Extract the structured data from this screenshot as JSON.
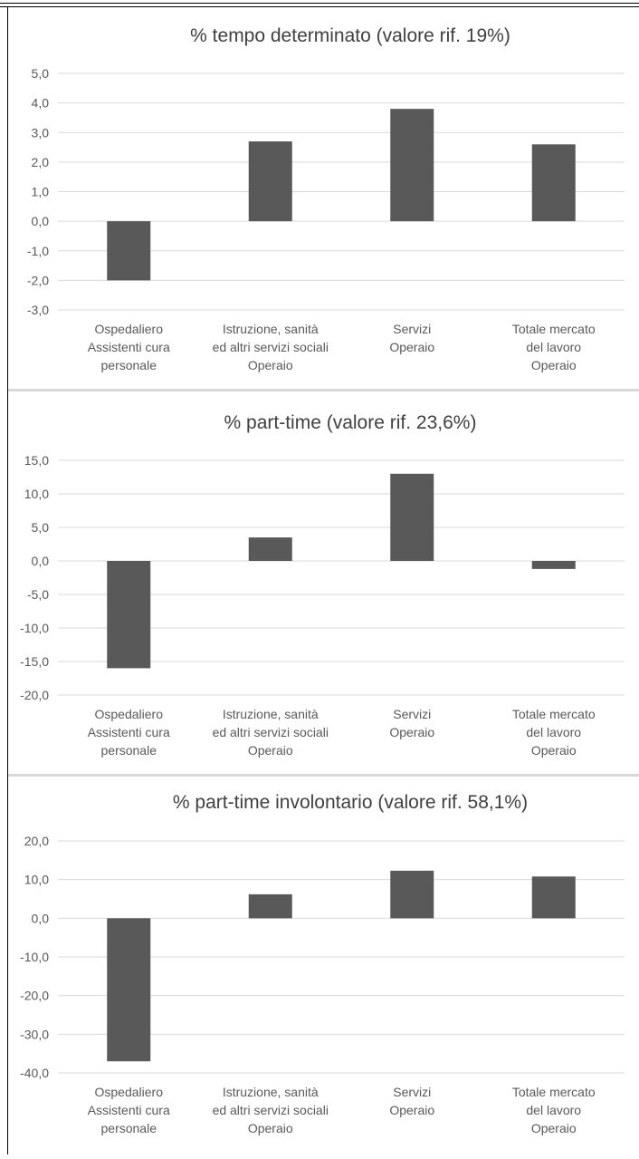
{
  "chart_data": [
    {
      "type": "bar",
      "title": "% tempo determinato (valore rif. 19%)",
      "categories": [
        [
          "Ospedaliero",
          "Assistenti cura",
          "personale"
        ],
        [
          "Istruzione, sanità",
          "ed altri servizi sociali",
          "Operaio"
        ],
        [
          "Servizi",
          "Operaio"
        ],
        [
          "Totale mercato",
          "del lavoro",
          "Operaio"
        ]
      ],
      "values": [
        -2.0,
        2.7,
        3.8,
        2.6
      ],
      "ylim": [
        -3.0,
        5.0
      ],
      "yticks": [
        "5,0",
        "4,0",
        "3,0",
        "2,0",
        "1,0",
        "0,0",
        "-1,0",
        "-2,0",
        "-3,0"
      ],
      "grid": true,
      "xlabel": "",
      "ylabel": ""
    },
    {
      "type": "bar",
      "title": "% part-time (valore rif. 23,6%)",
      "categories": [
        [
          "Ospedaliero",
          "Assistenti cura",
          "personale"
        ],
        [
          "Istruzione, sanità",
          "ed altri servizi sociali",
          "Operaio"
        ],
        [
          "Servizi",
          "Operaio"
        ],
        [
          "Totale mercato",
          "del lavoro",
          "Operaio"
        ]
      ],
      "values": [
        -16.0,
        3.5,
        13.0,
        -1.2
      ],
      "ylim": [
        -20.0,
        15.0
      ],
      "yticks": [
        "15,0",
        "10,0",
        "5,0",
        "0,0",
        "-5,0",
        "-10,0",
        "-15,0",
        "-20,0"
      ],
      "grid": true,
      "xlabel": "",
      "ylabel": ""
    },
    {
      "type": "bar",
      "title": "% part-time involontario (valore rif. 58,1%)",
      "categories": [
        [
          "Ospedaliero",
          "Assistenti cura",
          "personale"
        ],
        [
          "Istruzione, sanità",
          "ed altri servizi sociali",
          "Operaio"
        ],
        [
          "Servizi",
          "Operaio"
        ],
        [
          "Totale mercato",
          "del lavoro",
          "Operaio"
        ]
      ],
      "values": [
        -37.0,
        6.2,
        12.3,
        10.8
      ],
      "ylim": [
        -40.0,
        20.0
      ],
      "yticks": [
        "20,0",
        "10,0",
        "0,0",
        "-10,0",
        "-20,0",
        "-30,0",
        "-40,0"
      ],
      "grid": true,
      "xlabel": "",
      "ylabel": ""
    }
  ],
  "colors": {
    "bar": "#595959",
    "grid": "#d9d9d9",
    "text": "#595959",
    "title": "#404040"
  }
}
